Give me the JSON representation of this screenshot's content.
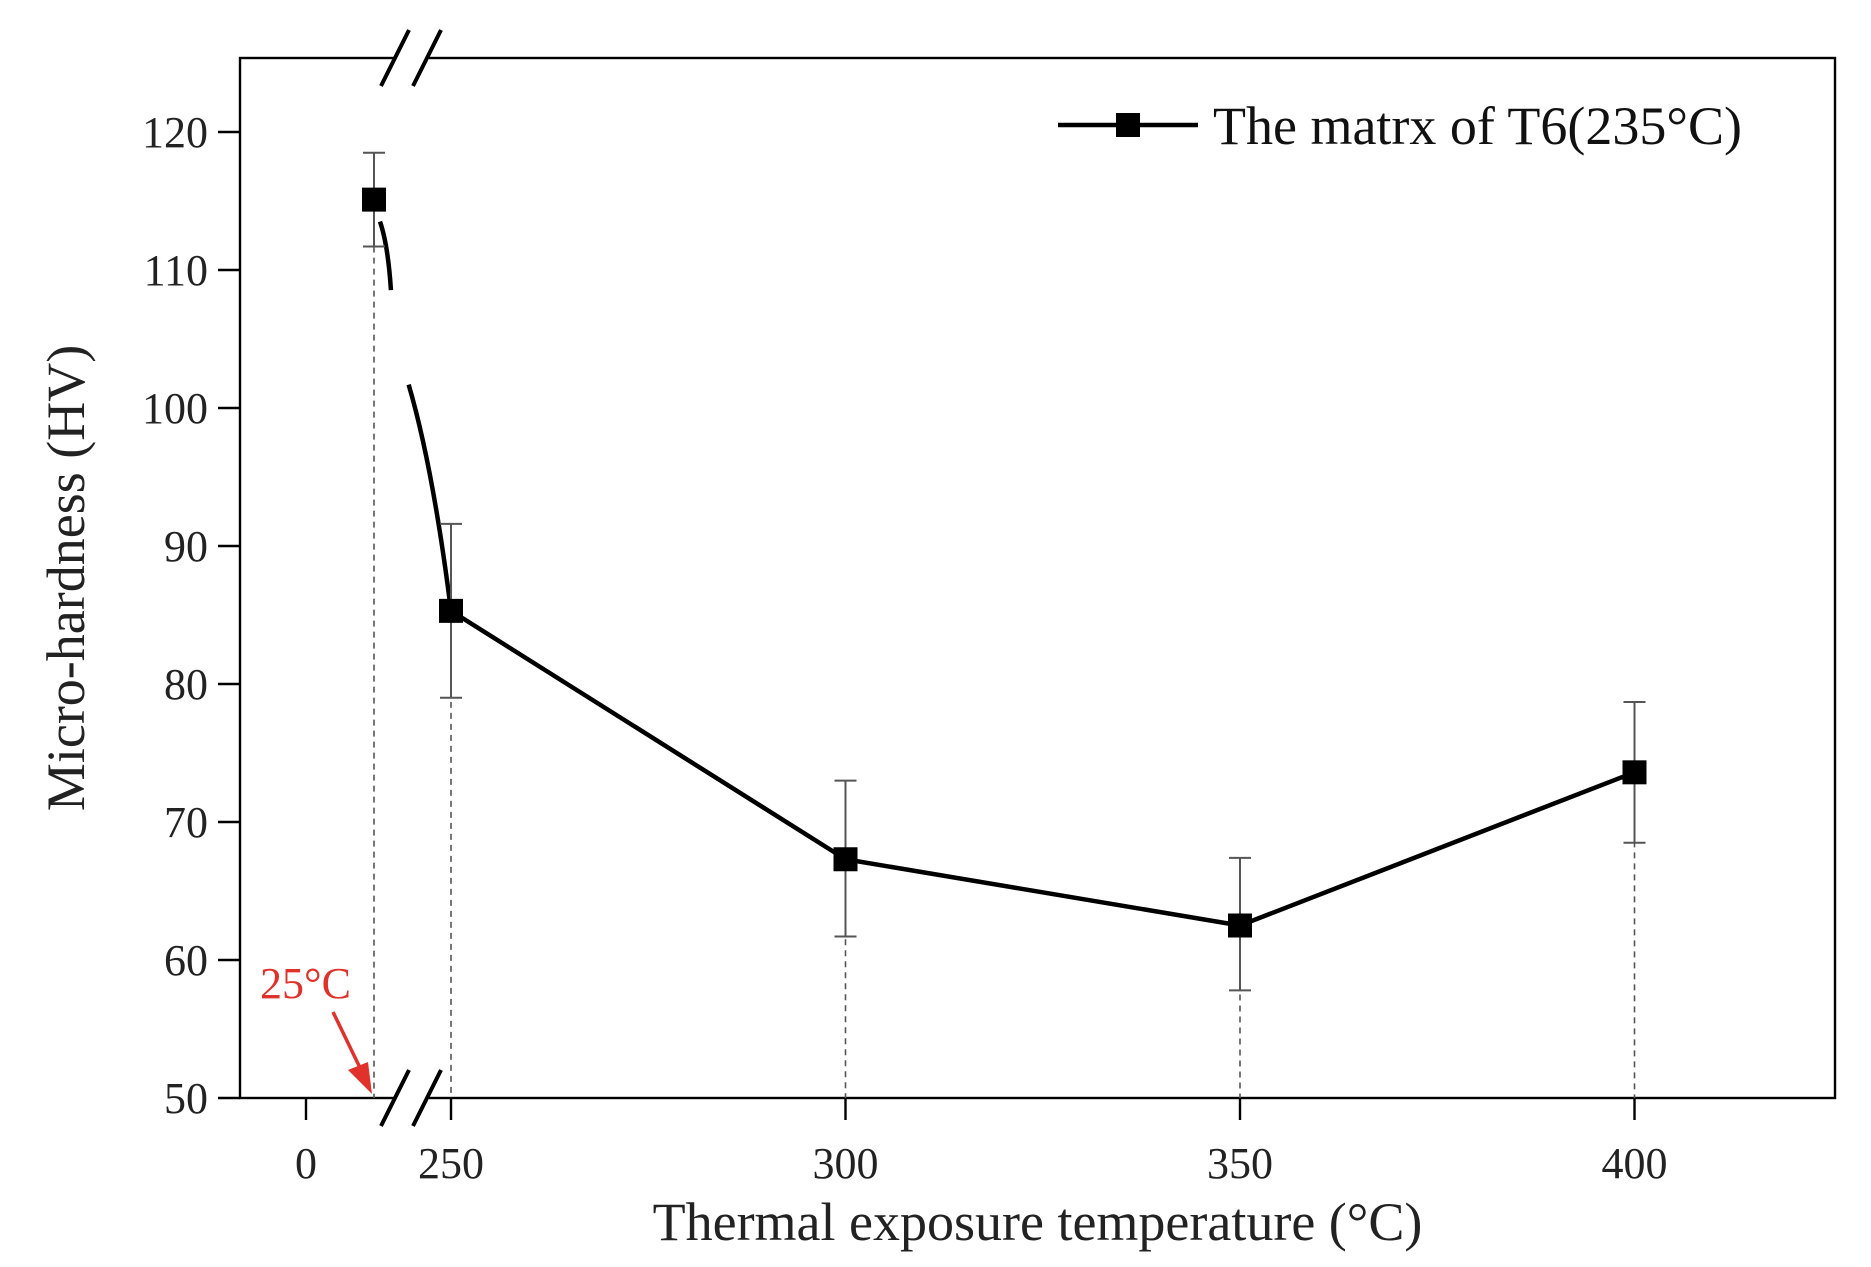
{
  "chart_data": {
    "type": "line",
    "xlabel": "Thermal exposure temperature (°C)",
    "ylabel": "Micro-hardness (HV)",
    "ylim": [
      50,
      125
    ],
    "yticks": [
      50,
      60,
      70,
      80,
      90,
      100,
      110,
      120
    ],
    "x_tick_labels": [
      "0",
      "250",
      "300",
      "350",
      "400"
    ],
    "x_axis_break": "between 0 and 250",
    "grid": false,
    "legend_position": "top-right",
    "series": [
      {
        "name": "The matrx of T6(235°C)",
        "color": "#000000",
        "marker": "square",
        "x": [
          25,
          250,
          300,
          350,
          400
        ],
        "y": [
          115.1,
          85.3,
          67.3,
          62.5,
          73.6
        ],
        "error_low": [
          111.7,
          79.0,
          61.7,
          57.8,
          68.5
        ],
        "error_high": [
          118.5,
          91.6,
          73.0,
          67.4,
          78.7
        ]
      }
    ],
    "annotations": [
      {
        "text": "25°C",
        "color": "#e0312b",
        "points_to_x": 25
      }
    ]
  }
}
